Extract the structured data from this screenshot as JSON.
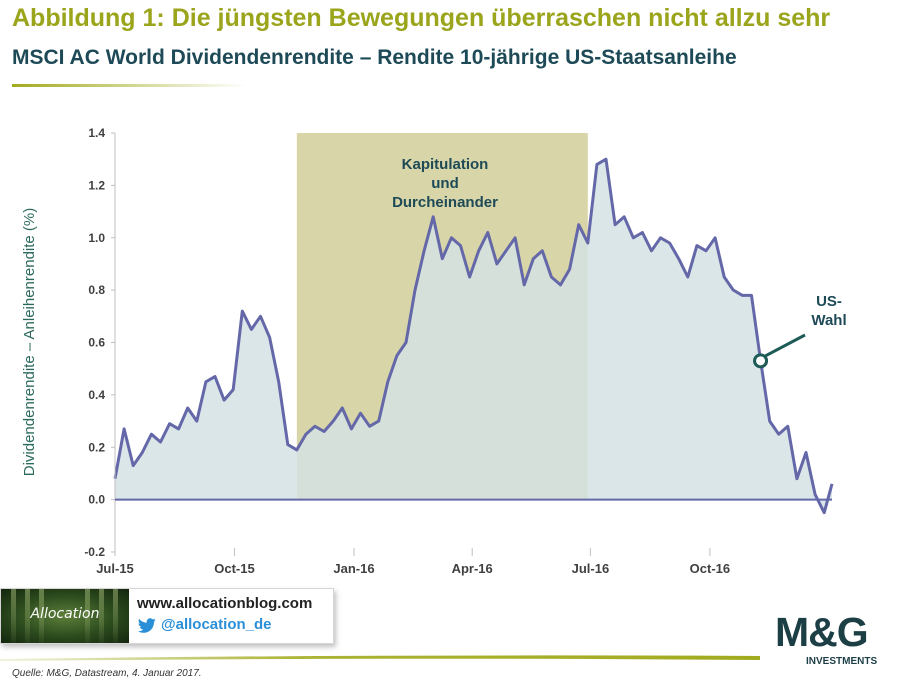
{
  "header": {
    "title": "Abbildung 1: Die jüngsten Bewegungen überraschen nicht allzu sehr",
    "subtitle": "MSCI AC World Dividendenrendite – Rendite 10-jährige US-Staatsanleihe"
  },
  "chart_data": {
    "type": "area",
    "title": "",
    "xlabel": "",
    "ylabel": "Dividendenrendite – Anleihenrendite (%)",
    "ylim": [
      -0.2,
      1.4
    ],
    "yticks": [
      -0.2,
      0.0,
      0.2,
      0.4,
      0.6,
      0.8,
      1.0,
      1.2,
      1.4
    ],
    "ytick_labels": [
      "-0.2",
      "0.0",
      "0.2",
      "0.4",
      "0.6",
      "0.8",
      "1.0",
      "1.2",
      "1.4"
    ],
    "xticks": [
      "Jul-15",
      "Oct-15",
      "Jan-16",
      "Apr-16",
      "Jul-16",
      "Oct-16"
    ],
    "x_start": "2015-07-01",
    "x_end": "2017-01-03",
    "grid": false,
    "legend": "none",
    "series": [
      {
        "name": "",
        "color": "#6468a8",
        "fill": "#d5e2e4",
        "x": [
          "2015-07-01",
          "2015-07-08",
          "2015-07-15",
          "2015-07-22",
          "2015-07-29",
          "2015-08-05",
          "2015-08-12",
          "2015-08-19",
          "2015-08-26",
          "2015-09-02",
          "2015-09-09",
          "2015-09-16",
          "2015-09-23",
          "2015-09-30",
          "2015-10-07",
          "2015-10-14",
          "2015-10-21",
          "2015-10-28",
          "2015-11-04",
          "2015-11-11",
          "2015-11-18",
          "2015-11-25",
          "2015-12-02",
          "2015-12-09",
          "2015-12-16",
          "2015-12-23",
          "2015-12-30",
          "2016-01-06",
          "2016-01-13",
          "2016-01-20",
          "2016-01-27",
          "2016-02-03",
          "2016-02-10",
          "2016-02-17",
          "2016-02-24",
          "2016-03-02",
          "2016-03-09",
          "2016-03-16",
          "2016-03-23",
          "2016-03-30",
          "2016-04-06",
          "2016-04-13",
          "2016-04-20",
          "2016-04-27",
          "2016-05-04",
          "2016-05-11",
          "2016-05-18",
          "2016-05-25",
          "2016-06-01",
          "2016-06-08",
          "2016-06-15",
          "2016-06-22",
          "2016-06-29",
          "2016-07-06",
          "2016-07-13",
          "2016-07-20",
          "2016-07-27",
          "2016-08-03",
          "2016-08-10",
          "2016-08-17",
          "2016-08-24",
          "2016-08-31",
          "2016-09-07",
          "2016-09-14",
          "2016-09-21",
          "2016-09-28",
          "2016-10-05",
          "2016-10-12",
          "2016-10-19",
          "2016-10-26",
          "2016-11-02",
          "2016-11-09",
          "2016-11-16",
          "2016-11-23",
          "2016-11-30",
          "2016-12-07",
          "2016-12-14",
          "2016-12-21",
          "2016-12-28",
          "2017-01-03"
        ],
        "values": [
          0.08,
          0.27,
          0.13,
          0.18,
          0.25,
          0.22,
          0.29,
          0.27,
          0.35,
          0.3,
          0.45,
          0.47,
          0.38,
          0.42,
          0.72,
          0.65,
          0.7,
          0.62,
          0.45,
          0.21,
          0.19,
          0.25,
          0.28,
          0.26,
          0.3,
          0.35,
          0.27,
          0.33,
          0.28,
          0.3,
          0.45,
          0.55,
          0.6,
          0.8,
          0.95,
          1.08,
          0.92,
          1.0,
          0.97,
          0.85,
          0.95,
          1.02,
          0.9,
          0.95,
          1.0,
          0.82,
          0.92,
          0.95,
          0.85,
          0.82,
          0.88,
          1.05,
          0.98,
          1.28,
          1.3,
          1.05,
          1.08,
          1.0,
          1.02,
          0.95,
          1.0,
          0.98,
          0.92,
          0.85,
          0.97,
          0.95,
          1.0,
          0.85,
          0.8,
          0.78,
          0.78,
          0.53,
          0.3,
          0.25,
          0.28,
          0.08,
          0.18,
          0.02,
          -0.05,
          0.06
        ]
      }
    ],
    "shaded_region": {
      "x_start": "2015-11-18",
      "x_end": "2016-06-29",
      "color": "#d8d6a8",
      "label": [
        "Kapitulation",
        "und",
        "Durcheinander"
      ]
    },
    "annotations": [
      {
        "text": [
          "US-",
          "Wahl"
        ],
        "x": "2016-11-09",
        "y": 0.53
      }
    ]
  },
  "footer": {
    "brand_logo_text": "Allocation",
    "blog_url": "www.allocationblog.com",
    "twitter_handle": "@allocation_de",
    "company_name": "M&G",
    "company_sub": "INVESTMENTS",
    "source": "Quelle: M&G, Datastream, 4. Januar 2017."
  },
  "colors": {
    "title": "#9aa51b",
    "subtitle": "#1e4a57",
    "axis_label": "#2d6a5e",
    "line": "#6468a8",
    "area_fill": "#d5e2e4",
    "shade": "#d8d6a8",
    "annotation": "#1d5b57",
    "twitter": "#2a8fd6"
  },
  "icons": [
    "twitter-icon"
  ]
}
